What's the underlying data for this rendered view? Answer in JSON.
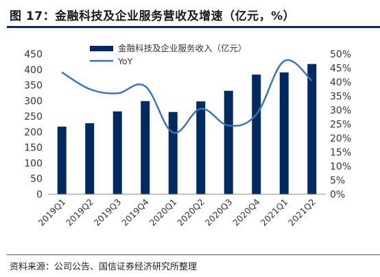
{
  "title": "图 17：金融科技及企业服务营收及增速（亿元，%）",
  "source": "资料来源：公司公告、国信证券经济研究所整理",
  "colors": {
    "bar": "#002a60",
    "line": "#3b73b9",
    "title_rule": "#0b2a5c"
  },
  "chart_data": {
    "type": "bar",
    "categories": [
      "2019Q1",
      "2019Q2",
      "2019Q3",
      "2019Q4",
      "2020Q1",
      "2020Q2",
      "2020Q3",
      "2020Q4",
      "2021Q1",
      "2021Q2"
    ],
    "series": [
      {
        "name": "金融科技及企业服务收入（亿元）",
        "type": "bar",
        "axis": "left",
        "values": [
          217,
          228,
          266,
          299,
          264,
          298,
          332,
          384,
          391,
          418
        ]
      },
      {
        "name": "YoY",
        "type": "line",
        "axis": "right",
        "smooth": true,
        "values": [
          43.5,
          37.5,
          36.0,
          38.5,
          22.0,
          30.5,
          24.5,
          28.5,
          47.5,
          40.5
        ]
      }
    ],
    "left_axis": {
      "min": 0,
      "max": 450,
      "step": 50,
      "ticks": [
        "0",
        "50",
        "100",
        "150",
        "200",
        "250",
        "300",
        "350",
        "400",
        "450"
      ]
    },
    "right_axis": {
      "min": 0,
      "max": 50,
      "step": 5,
      "ticks": [
        "0%",
        "5%",
        "10%",
        "15%",
        "20%",
        "25%",
        "30%",
        "35%",
        "40%",
        "45%",
        "50%"
      ]
    },
    "legend_position": "top-center",
    "grid": false
  }
}
